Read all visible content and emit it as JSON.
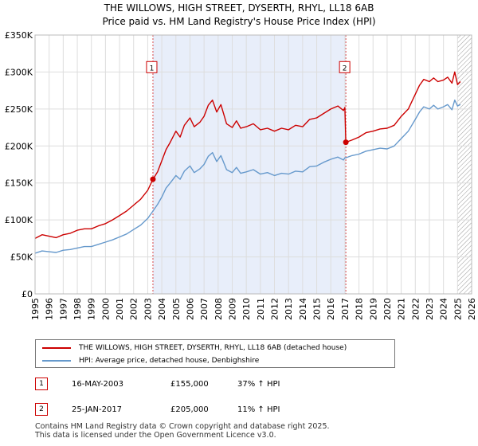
{
  "title": {
    "line1": "THE WILLOWS, HIGH STREET, DYSERTH, RHYL, LL18 6AB",
    "line2": "Price paid vs. HM Land Registry's House Price Index (HPI)"
  },
  "colors": {
    "price_line": "#cc0000",
    "hpi_line": "#6699cc",
    "shade": "#e8eefa",
    "grid": "#dddddd",
    "hatch": "#999999"
  },
  "chart_data": {
    "type": "line",
    "xlim": [
      1995,
      2026
    ],
    "ylim": [
      0,
      350000
    ],
    "x_ticks": [
      "1995",
      "1996",
      "1997",
      "1998",
      "1999",
      "2000",
      "2001",
      "2002",
      "2003",
      "2004",
      "2005",
      "2006",
      "2007",
      "2008",
      "2009",
      "2010",
      "2011",
      "2012",
      "2013",
      "2014",
      "2015",
      "2016",
      "2017",
      "2018",
      "2019",
      "2020",
      "2021",
      "2022",
      "2023",
      "2024",
      "2025",
      "2026"
    ],
    "y_ticks": [
      {
        "value": 0,
        "label": "£0"
      },
      {
        "value": 50000,
        "label": "£50K"
      },
      {
        "value": 100000,
        "label": "£100K"
      },
      {
        "value": 150000,
        "label": "£150K"
      },
      {
        "value": 200000,
        "label": "£200K"
      },
      {
        "value": 250000,
        "label": "£250K"
      },
      {
        "value": 300000,
        "label": "£300K"
      },
      {
        "value": 350000,
        "label": "£350K"
      }
    ],
    "shaded_region": [
      2003.37,
      2017.07
    ],
    "hatched_from": 2025.0,
    "series": [
      {
        "name": "THE WILLOWS, HIGH STREET, DYSERTH, RHYL, LL18 6AB (detached house)",
        "color": "#cc0000",
        "x": [
          1995.0,
          1995.5,
          1996.0,
          1996.5,
          1997.0,
          1997.5,
          1998.0,
          1998.5,
          1999.0,
          1999.5,
          2000.0,
          2000.5,
          2001.0,
          2001.5,
          2002.0,
          2002.5,
          2003.0,
          2003.37,
          2003.7,
          2004.0,
          2004.3,
          2004.6,
          2005.0,
          2005.3,
          2005.6,
          2006.0,
          2006.3,
          2006.7,
          2007.0,
          2007.3,
          2007.6,
          2007.9,
          2008.2,
          2008.6,
          2009.0,
          2009.3,
          2009.6,
          2010.0,
          2010.5,
          2011.0,
          2011.5,
          2012.0,
          2012.5,
          2013.0,
          2013.5,
          2014.0,
          2014.5,
          2015.0,
          2015.5,
          2016.0,
          2016.5,
          2016.9,
          2017.0,
          2017.07,
          2017.5,
          2018.0,
          2018.5,
          2019.0,
          2019.5,
          2020.0,
          2020.5,
          2021.0,
          2021.5,
          2022.0,
          2022.3,
          2022.6,
          2023.0,
          2023.3,
          2023.6,
          2024.0,
          2024.3,
          2024.6,
          2024.8,
          2025.0,
          2025.2
        ],
        "values": [
          75000,
          80000,
          78000,
          76000,
          80000,
          82000,
          86000,
          88000,
          88000,
          92000,
          95000,
          100000,
          106000,
          112000,
          120000,
          128000,
          140000,
          155000,
          165000,
          180000,
          195000,
          205000,
          220000,
          212000,
          228000,
          238000,
          226000,
          232000,
          240000,
          255000,
          262000,
          246000,
          256000,
          230000,
          225000,
          234000,
          224000,
          226000,
          230000,
          222000,
          224000,
          220000,
          224000,
          222000,
          228000,
          226000,
          236000,
          238000,
          244000,
          250000,
          254000,
          248000,
          252000,
          205000,
          208000,
          212000,
          218000,
          220000,
          223000,
          224000,
          228000,
          240000,
          250000,
          270000,
          282000,
          290000,
          287000,
          292000,
          287000,
          289000,
          293000,
          285000,
          300000,
          283000,
          287000
        ]
      },
      {
        "name": "HPI: Average price, detached house, Denbighshire",
        "color": "#6699cc",
        "x": [
          1995.0,
          1995.5,
          1996.0,
          1996.5,
          1997.0,
          1997.5,
          1998.0,
          1998.5,
          1999.0,
          1999.5,
          2000.0,
          2000.5,
          2001.0,
          2001.5,
          2002.0,
          2002.5,
          2003.0,
          2003.37,
          2003.7,
          2004.0,
          2004.3,
          2004.6,
          2005.0,
          2005.3,
          2005.6,
          2006.0,
          2006.3,
          2006.7,
          2007.0,
          2007.3,
          2007.6,
          2007.9,
          2008.2,
          2008.6,
          2009.0,
          2009.3,
          2009.6,
          2010.0,
          2010.5,
          2011.0,
          2011.5,
          2012.0,
          2012.5,
          2013.0,
          2013.5,
          2014.0,
          2014.5,
          2015.0,
          2015.5,
          2016.0,
          2016.5,
          2016.9,
          2017.0,
          2017.07,
          2017.5,
          2018.0,
          2018.5,
          2019.0,
          2019.5,
          2020.0,
          2020.5,
          2021.0,
          2021.5,
          2022.0,
          2022.3,
          2022.6,
          2023.0,
          2023.3,
          2023.6,
          2024.0,
          2024.3,
          2024.6,
          2024.8,
          2025.0,
          2025.2
        ],
        "values": [
          55000,
          58000,
          57000,
          56000,
          59000,
          60000,
          62000,
          64000,
          64000,
          67000,
          70000,
          73000,
          77000,
          81000,
          87000,
          93000,
          102000,
          112000,
          121000,
          131000,
          143000,
          150000,
          160000,
          155000,
          166000,
          173000,
          164000,
          169000,
          175000,
          186000,
          191000,
          179000,
          187000,
          168000,
          164000,
          171000,
          163000,
          165000,
          168000,
          162000,
          164000,
          160000,
          163000,
          162000,
          166000,
          165000,
          172000,
          173000,
          178000,
          182000,
          185000,
          181000,
          184000,
          184000,
          187000,
          189000,
          193000,
          195000,
          197000,
          196000,
          200000,
          210000,
          220000,
          236000,
          246000,
          253000,
          250000,
          255000,
          250000,
          253000,
          256000,
          249000,
          262000,
          254000,
          256000
        ]
      }
    ],
    "sales": [
      {
        "label": "1",
        "x": 2003.37,
        "price": 155000
      },
      {
        "label": "2",
        "x": 2017.07,
        "price": 205000
      }
    ]
  },
  "legend": {
    "items": [
      {
        "label": "THE WILLOWS, HIGH STREET, DYSERTH, RHYL, LL18 6AB (detached house)",
        "color": "#cc0000"
      },
      {
        "label": "HPI: Average price, detached house, Denbighshire",
        "color": "#6699cc"
      }
    ]
  },
  "sales_table": [
    {
      "num": "1",
      "date": "16-MAY-2003",
      "price": "£155,000",
      "hpi": "37% ↑ HPI"
    },
    {
      "num": "2",
      "date": "25-JAN-2017",
      "price": "£205,000",
      "hpi": "11% ↑ HPI"
    }
  ],
  "footer": {
    "line1": "Contains HM Land Registry data © Crown copyright and database right 2025.",
    "line2": "This data is licensed under the Open Government Licence v3.0."
  }
}
